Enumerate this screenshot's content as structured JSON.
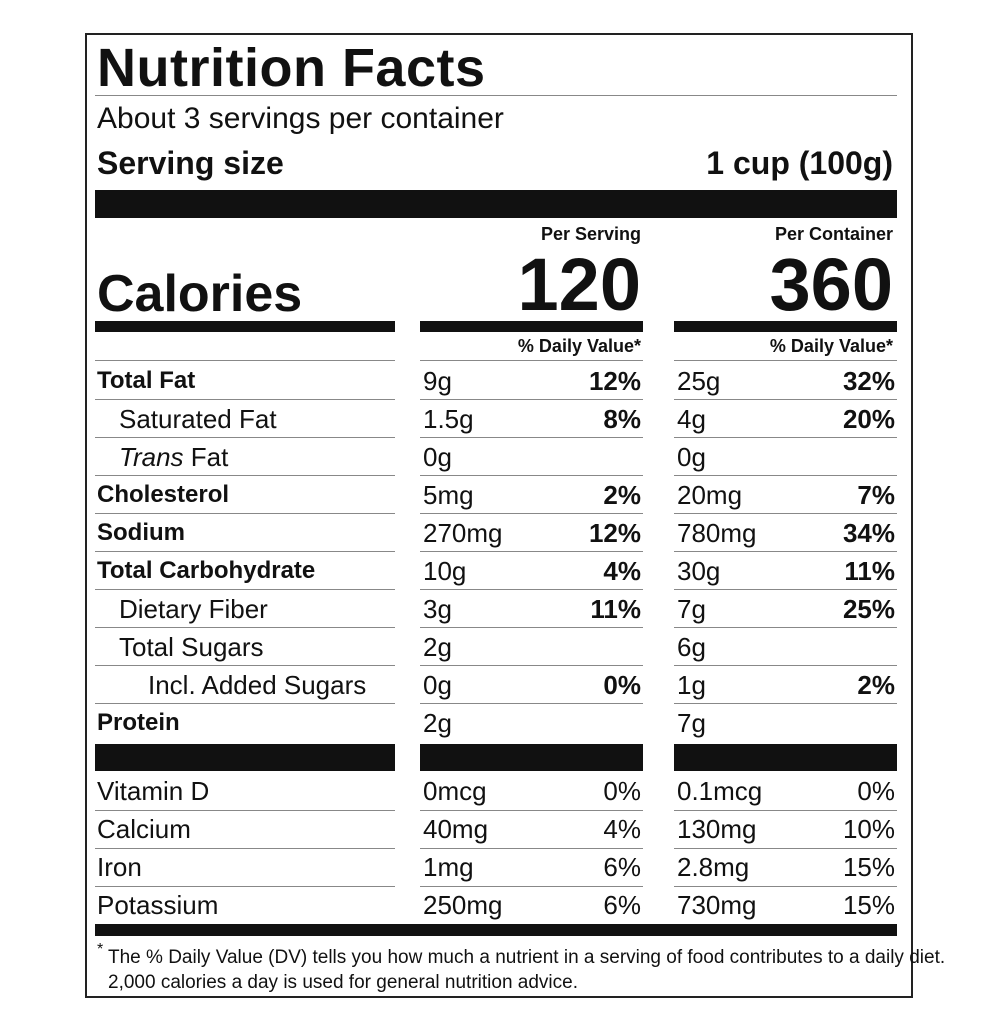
{
  "title": "Nutrition Facts",
  "servings": "About 3 servings per container",
  "serving_size": {
    "label": "Serving size",
    "value": "1 cup (100g)"
  },
  "columns": [
    "Per Serving",
    "Per Container"
  ],
  "calories": {
    "label": "Calories",
    "values": [
      "120",
      "360"
    ]
  },
  "dv_header": "% Daily Value*",
  "nutrients": [
    {
      "name": "Total Fat",
      "kind": "main",
      "serving": [
        "9g",
        "12%"
      ],
      "container": [
        "25g",
        "32%"
      ]
    },
    {
      "name": "Saturated Fat",
      "kind": "sub",
      "serving": [
        "1.5g",
        "8%"
      ],
      "container": [
        "4g",
        "20%"
      ]
    },
    {
      "italic": "Trans",
      "name": "Fat",
      "kind": "sub",
      "serving": [
        "0g"
      ],
      "container": [
        "0g"
      ]
    },
    {
      "name": "Cholesterol",
      "kind": "main",
      "serving": [
        "5mg",
        "2%"
      ],
      "container": [
        "20mg",
        "7%"
      ]
    },
    {
      "name": "Sodium",
      "kind": "main",
      "serving": [
        "270mg",
        "12%"
      ],
      "container": [
        "780mg",
        "34%"
      ]
    },
    {
      "name": "Total Carbohydrate",
      "kind": "main",
      "serving": [
        "10g",
        "4%"
      ],
      "container": [
        "30g",
        "11%"
      ]
    },
    {
      "name": "Dietary Fiber",
      "kind": "sub",
      "serving": [
        "3g",
        "11%"
      ],
      "container": [
        "7g",
        "25%"
      ]
    },
    {
      "name": "Total Sugars",
      "kind": "sub",
      "serving": [
        "2g"
      ],
      "container": [
        "6g"
      ]
    },
    {
      "name": "Incl. Added Sugars",
      "kind": "subsub",
      "serving": [
        "0g",
        "0%"
      ],
      "container": [
        "1g",
        "2%"
      ]
    },
    {
      "name": "Protein",
      "kind": "main",
      "serving": [
        "2g"
      ],
      "container": [
        "7g"
      ]
    }
  ],
  "vitamins": [
    {
      "name": "Vitamin D",
      "serving": [
        "0mcg",
        "0%"
      ],
      "container": [
        "0.1mcg",
        "0%"
      ]
    },
    {
      "name": "Calcium",
      "serving": [
        "40mg",
        "4%"
      ],
      "container": [
        "130mg",
        "10%"
      ]
    },
    {
      "name": "Iron",
      "serving": [
        "1mg",
        "6%"
      ],
      "container": [
        "2.8mg",
        "15%"
      ]
    },
    {
      "name": "Potassium",
      "serving": [
        "250mg",
        "6%"
      ],
      "container": [
        "730mg",
        "15%"
      ]
    }
  ],
  "footnote": {
    "mark": "*",
    "lines": [
      "The % Daily Value (DV) tells you how much a nutrient in a serving of food contributes to a daily diet.",
      "2,000 calories a day is used for general nutrition advice."
    ]
  }
}
